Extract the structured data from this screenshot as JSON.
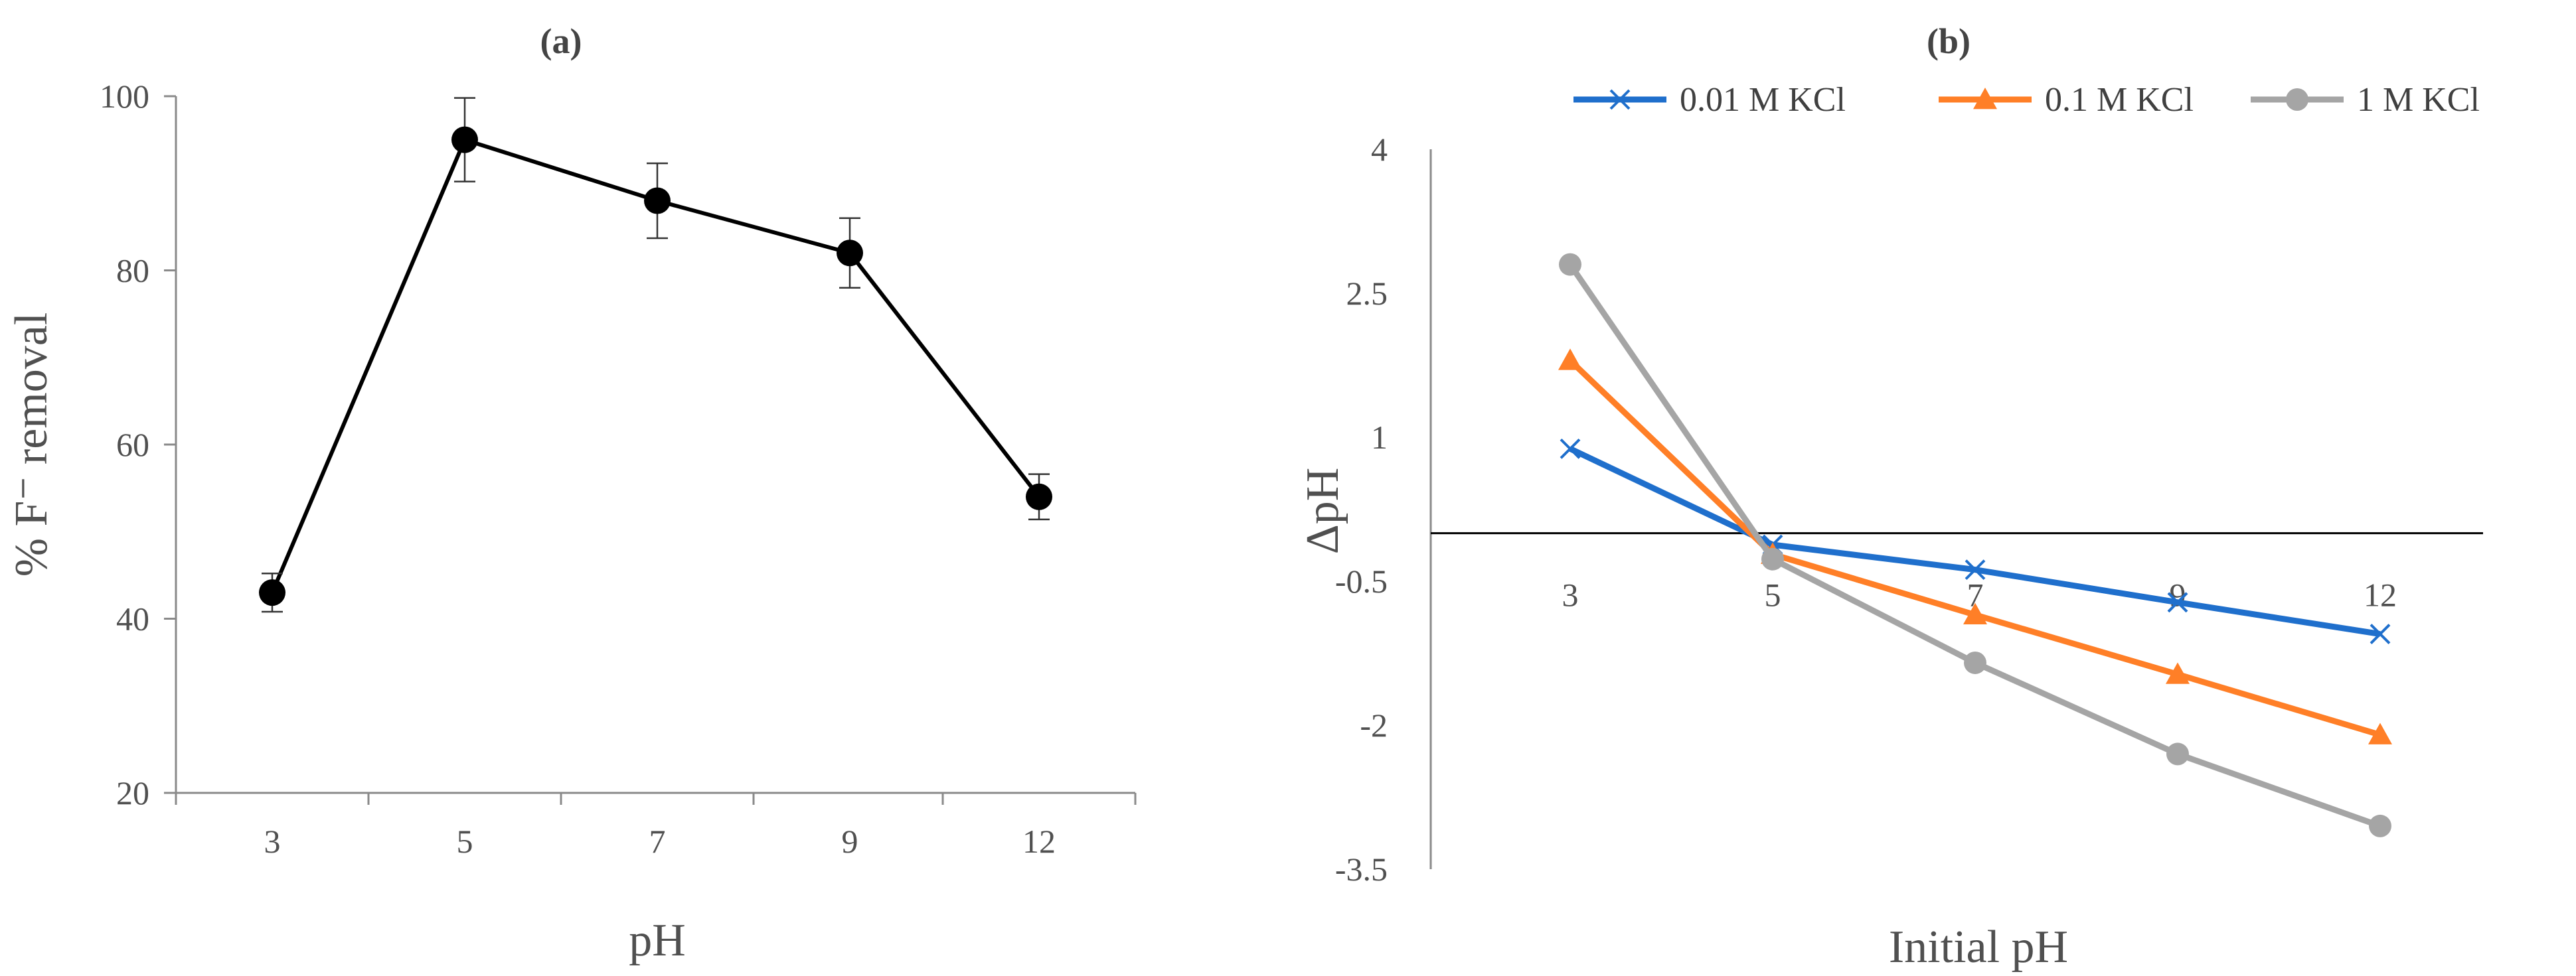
{
  "chart_data": [
    {
      "type": "line",
      "panel": "(a)",
      "title": "(a)",
      "xlabel": "pH",
      "ylabel": "% F⁻ removal",
      "categories": [
        "3",
        "5",
        "7",
        "9",
        "12"
      ],
      "ylim": [
        20,
        100
      ],
      "yticks": [
        20,
        40,
        60,
        80,
        100
      ],
      "series": [
        {
          "values": [
            43,
            95,
            88,
            82,
            54
          ],
          "errors": [
            2.2,
            4.8,
            4.3,
            4.0,
            2.6
          ],
          "color": "#000000"
        }
      ],
      "grid": false,
      "legend": "none"
    },
    {
      "type": "line",
      "panel": "(b)",
      "title": "(b)",
      "xlabel": "Initial pH",
      "ylabel": "ΔpH",
      "categories": [
        "3",
        "5",
        "7",
        "9",
        "12"
      ],
      "ylim": [
        -3.5,
        4
      ],
      "yticks": [
        4,
        2.5,
        1,
        -0.5,
        -2,
        -3.5
      ],
      "ytick_labels": [
        "4",
        "2.5",
        "1",
        "-0.5",
        "-2",
        "-3.5"
      ],
      "series": [
        {
          "name": "0.01 M KCl",
          "marker": "x",
          "color": "#1F6FCC",
          "values": [
            0.88,
            -0.12,
            -0.38,
            -0.72,
            -1.05
          ]
        },
        {
          "name": "0.1 M KCl",
          "marker": "triangle",
          "color": "#FF7F27",
          "values": [
            1.8,
            -0.22,
            -0.85,
            -1.47,
            -2.1
          ]
        },
        {
          "name": "1 M KCl",
          "marker": "circle",
          "color": "#A5A5A5",
          "values": [
            2.8,
            -0.27,
            -1.35,
            -2.3,
            -3.05
          ]
        }
      ],
      "grid": false,
      "legend": "top"
    }
  ]
}
